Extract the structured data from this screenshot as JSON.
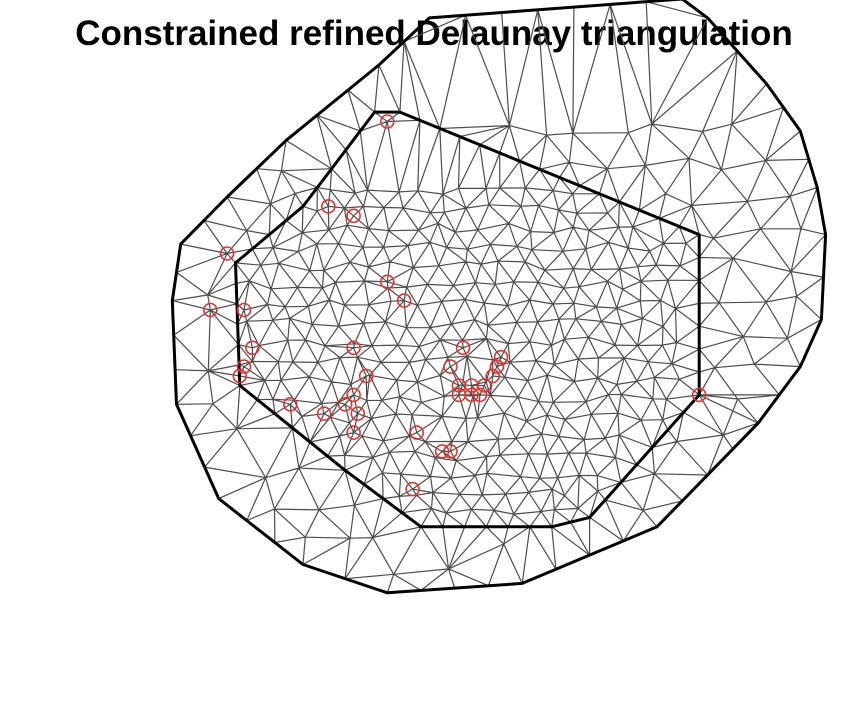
{
  "title": "Constrained refined Delaunay triangulation",
  "colors": {
    "mesh_edge": "#4d4d4d",
    "boundary": "#000000",
    "points": "#e8302a",
    "background": "#ffffff"
  },
  "mesh": {
    "type": "constrained refined Delaunay triangulation",
    "outer_boundary_vertices": [
      [
        -0.5,
        4.0
      ],
      [
        0.1,
        4.25
      ],
      [
        3.1,
        4.35
      ],
      [
        3.4,
        4.25
      ],
      [
        4.1,
        3.9
      ],
      [
        4.5,
        3.65
      ],
      [
        4.7,
        3.35
      ],
      [
        4.8,
        3.1
      ],
      [
        4.75,
        2.65
      ],
      [
        4.5,
        2.4
      ],
      [
        4.0,
        2.1
      ],
      [
        2.8,
        1.55
      ],
      [
        1.2,
        1.25
      ],
      [
        -0.4,
        1.2
      ],
      [
        -1.4,
        1.35
      ],
      [
        -2.4,
        1.7
      ],
      [
        -2.9,
        2.2
      ],
      [
        -2.95,
        2.75
      ],
      [
        -2.85,
        3.05
      ],
      [
        -2.3,
        3.3
      ],
      [
        -1.6,
        3.6
      ]
    ],
    "inner_boundary_vertices": [
      [
        -0.55,
        3.75
      ],
      [
        -0.25,
        3.75
      ],
      [
        3.3,
        3.1
      ],
      [
        3.3,
        2.25
      ],
      [
        2.0,
        1.6
      ],
      [
        1.55,
        1.55
      ],
      [
        0.0,
        1.55
      ],
      [
        -0.9,
        1.85
      ],
      [
        -2.15,
        2.3
      ],
      [
        -2.2,
        2.95
      ],
      [
        -1.4,
        3.25
      ]
    ]
  },
  "points": [
    [
      -0.4,
      3.7
    ],
    [
      -1.1,
      3.25
    ],
    [
      -0.8,
      3.2
    ],
    [
      -2.3,
      3.0
    ],
    [
      -2.1,
      2.7
    ],
    [
      -2.5,
      2.7
    ],
    [
      -0.4,
      2.85
    ],
    [
      -0.2,
      2.75
    ],
    [
      -2.0,
      2.5
    ],
    [
      -2.1,
      2.4
    ],
    [
      -2.15,
      2.35
    ],
    [
      -0.8,
      2.5
    ],
    [
      -0.65,
      2.35
    ],
    [
      -0.8,
      2.25
    ],
    [
      -0.9,
      2.2
    ],
    [
      -1.55,
      2.2
    ],
    [
      -0.75,
      2.15
    ],
    [
      -1.15,
      2.15
    ],
    [
      -0.8,
      2.05
    ],
    [
      0.35,
      2.4
    ],
    [
      0.45,
      2.25
    ],
    [
      0.45,
      2.3
    ],
    [
      0.6,
      2.3
    ],
    [
      0.6,
      2.25
    ],
    [
      0.7,
      2.25
    ],
    [
      0.75,
      2.3
    ],
    [
      0.85,
      2.35
    ],
    [
      0.9,
      2.4
    ],
    [
      0.95,
      2.45
    ],
    [
      0.5,
      2.5
    ],
    [
      3.3,
      2.25
    ],
    [
      -0.05,
      2.05
    ],
    [
      0.25,
      1.95
    ],
    [
      0.35,
      1.95
    ],
    [
      -0.1,
      1.75
    ]
  ]
}
